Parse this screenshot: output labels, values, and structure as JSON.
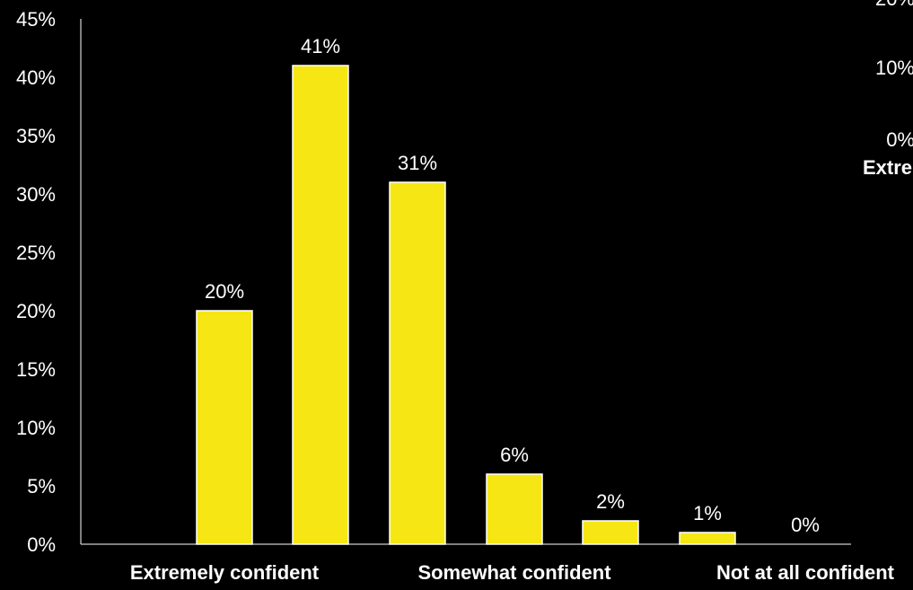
{
  "chart_data": {
    "type": "bar",
    "categories": [
      "Extremely confident",
      "",
      "",
      "Somewhat confident",
      "",
      "",
      "Not at all confident"
    ],
    "values": [
      20,
      41,
      31,
      6,
      2,
      1,
      0
    ],
    "data_labels": [
      "20%",
      "41%",
      "31%",
      "6%",
      "2%",
      "1%",
      "0%"
    ],
    "category_labels": [
      "Extremely confident",
      "Somewhat confident",
      "Not at all confident"
    ],
    "ylim": [
      0,
      45
    ],
    "yticks": [
      "0%",
      "5%",
      "10%",
      "15%",
      "20%",
      "25%",
      "30%",
      "35%",
      "40%",
      "45%"
    ],
    "grid": false,
    "legend": "none",
    "colors": {
      "background": "#000000",
      "bar": "#f5e614",
      "bar_edge": "#ffffff",
      "axis": "#ffffff",
      "text": "#ffffff"
    }
  },
  "background_chart": {
    "ticks": [
      "20%",
      "10%",
      "0%"
    ],
    "category_label": "Extre"
  }
}
